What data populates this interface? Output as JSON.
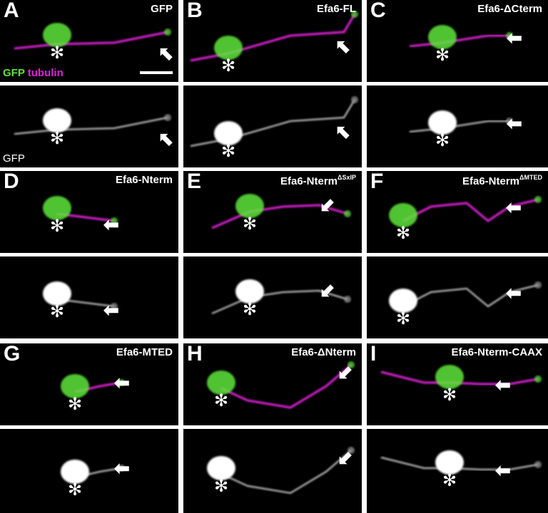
{
  "panels": [
    {
      "letter": "A",
      "label": "GFP",
      "sup": ""
    },
    {
      "letter": "B",
      "label": "Efa6-FL",
      "sup": ""
    },
    {
      "letter": "C",
      "label": "Efa6-ΔCterm",
      "sup": ""
    },
    {
      "letter": "D",
      "label": "Efa6-Nterm",
      "sup": ""
    },
    {
      "letter": "E",
      "label": "Efa6-Nterm",
      "sup": "ΔSxIP"
    },
    {
      "letter": "F",
      "label": "Efa6-Nterm",
      "sup": "ΔMTED"
    },
    {
      "letter": "G",
      "label": "Efa6-MTED",
      "sup": ""
    },
    {
      "letter": "H",
      "label": "Efa6-ΔNterm",
      "sup": ""
    },
    {
      "letter": "I",
      "label": "Efa6-Nterm-CAAX",
      "sup": ""
    }
  ],
  "channels": {
    "merge_green": "GFP",
    "merge_magenta": "tubulin",
    "single": "GFP"
  },
  "colors": {
    "gfp": "#5ee63a",
    "tubulin": "#e020d8",
    "grayscale": "#d8d8d8"
  },
  "icons": {
    "soma_marker": "asterisk-icon",
    "growth_cone_marker": "arrow-icon"
  }
}
